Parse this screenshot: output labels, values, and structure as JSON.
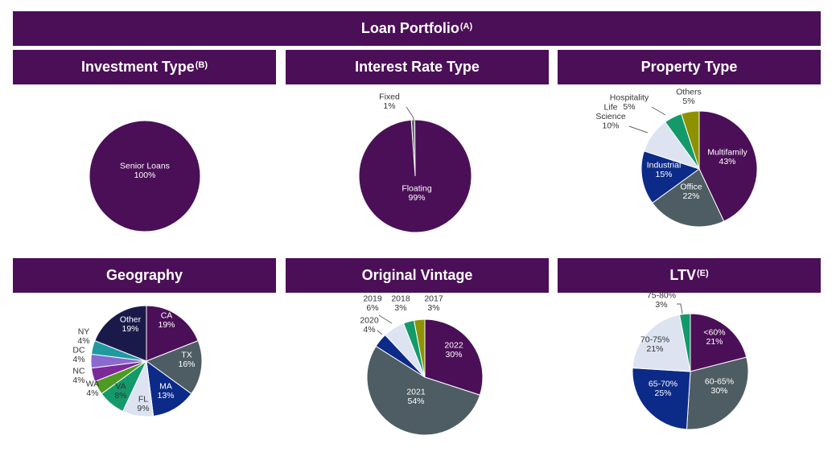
{
  "header": {
    "title": "Loan Portfolio",
    "sup": "(A)"
  },
  "colors": {
    "banner": "#4b0f57",
    "purple": "#4b0f57",
    "slate": "#4d5d63",
    "navy": "#0c2a87",
    "lavender": "#dde3f1",
    "green": "#149a6a",
    "olive": "#8e9200",
    "teal": "#1f9aa0",
    "violet": "#8a6ad0",
    "lime": "#4f9a22",
    "darknavy": "#1a1a4a",
    "gray": "#666b72"
  },
  "chart_data": [
    {
      "id": "investment",
      "type": "pie",
      "title": "Investment Type",
      "title_sup": "(B)",
      "slices": [
        {
          "name": "Senior Loans",
          "value": 100,
          "label": "100%",
          "color": "#4b0f57"
        }
      ]
    },
    {
      "id": "interest",
      "type": "pie",
      "title": "Interest Rate Type",
      "title_sup": "",
      "slices": [
        {
          "name": "Fixed",
          "value": 1,
          "label": "1%",
          "color": "#666b72"
        },
        {
          "name": "Floating",
          "value": 99,
          "label": "99%",
          "color": "#4b0f57"
        }
      ]
    },
    {
      "id": "property",
      "type": "pie",
      "title": "Property Type",
      "title_sup": "",
      "slices": [
        {
          "name": "Multifamily",
          "value": 43,
          "label": "43%",
          "color": "#4b0f57"
        },
        {
          "name": "Office",
          "value": 22,
          "label": "22%",
          "color": "#4d5d63"
        },
        {
          "name": "Industrial",
          "value": 15,
          "label": "15%",
          "color": "#0c2a87"
        },
        {
          "name": "Life Science",
          "value": 10,
          "label": "10%",
          "color": "#dde3f1"
        },
        {
          "name": "Hospitality",
          "value": 5,
          "label": "5%",
          "color": "#149a6a"
        },
        {
          "name": "Others",
          "value": 5,
          "label": "5%",
          "color": "#8e9200"
        }
      ]
    },
    {
      "id": "geography",
      "type": "pie",
      "title": "Geography",
      "title_sup": "",
      "slices": [
        {
          "name": "CA",
          "value": 19,
          "label": "19%",
          "color": "#4b0f57"
        },
        {
          "name": "TX",
          "value": 16,
          "label": "16%",
          "color": "#4d5d63"
        },
        {
          "name": "MA",
          "value": 13,
          "label": "13%",
          "color": "#0c2a87"
        },
        {
          "name": "FL",
          "value": 9,
          "label": "9%",
          "color": "#dde3f1"
        },
        {
          "name": "VA",
          "value": 8,
          "label": "8%",
          "color": "#149a6a"
        },
        {
          "name": "WA",
          "value": 4,
          "label": "4%",
          "color": "#4f9a22"
        },
        {
          "name": "NC",
          "value": 4,
          "label": "4%",
          "color": "#7b2a98"
        },
        {
          "name": "DC",
          "value": 4,
          "label": "4%",
          "color": "#8a6ad0"
        },
        {
          "name": "NY",
          "value": 4,
          "label": "4%",
          "color": "#1f9aa0"
        },
        {
          "name": "Other",
          "value": 19,
          "label": "19%",
          "color": "#1a1a4a"
        }
      ]
    },
    {
      "id": "vintage",
      "type": "pie",
      "title": "Original Vintage",
      "title_sup": "",
      "slices": [
        {
          "name": "2022",
          "value": 30,
          "label": "30%",
          "color": "#4b0f57"
        },
        {
          "name": "2021",
          "value": 54,
          "label": "54%",
          "color": "#4d5d63"
        },
        {
          "name": "2020",
          "value": 4,
          "label": "4%",
          "color": "#0c2a87"
        },
        {
          "name": "2019",
          "value": 6,
          "label": "6%",
          "color": "#dde3f1"
        },
        {
          "name": "2018",
          "value": 3,
          "label": "3%",
          "color": "#149a6a"
        },
        {
          "name": "2017",
          "value": 3,
          "label": "3%",
          "color": "#8e9200"
        }
      ]
    },
    {
      "id": "ltv",
      "type": "pie",
      "title": "LTV",
      "title_sup": "(E)",
      "slices": [
        {
          "name": "<60%",
          "value": 21,
          "label": "21%",
          "color": "#4b0f57"
        },
        {
          "name": "60-65%",
          "value": 30,
          "label": "30%",
          "color": "#4d5d63"
        },
        {
          "name": "65-70%",
          "value": 25,
          "label": "25%",
          "color": "#0c2a87"
        },
        {
          "name": "70-75%",
          "value": 21,
          "label": "21%",
          "color": "#dde3f1"
        },
        {
          "name": "75-80%",
          "value": 3,
          "label": "3%",
          "color": "#149a6a"
        }
      ]
    }
  ]
}
